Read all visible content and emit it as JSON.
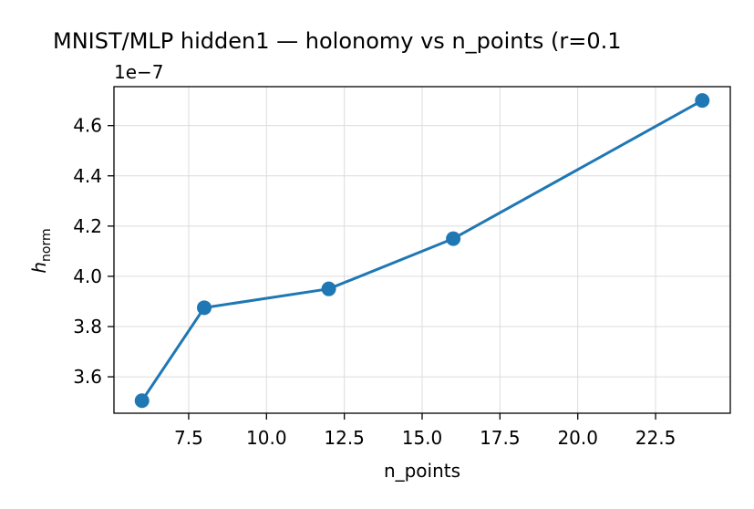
{
  "chart_data": {
    "type": "line",
    "title": "MNIST/MLP hidden1 — holonomy vs n_points (r=0.1",
    "xlabel": "n_points",
    "ylabel_main": "h",
    "ylabel_sub": "norm",
    "y_offset_label": "1e−7",
    "x": [
      6,
      8,
      12,
      16,
      24
    ],
    "values": [
      3.505,
      3.875,
      3.95,
      4.15,
      4.7
    ],
    "y_scale": 1e-07,
    "xlim": [
      5.1,
      24.9
    ],
    "ylim": [
      3.455,
      4.755
    ],
    "x_ticks": [
      7.5,
      10.0,
      12.5,
      15.0,
      17.5,
      20.0,
      22.5
    ],
    "x_tick_labels": [
      "7.5",
      "10.0",
      "12.5",
      "15.0",
      "17.5",
      "20.0",
      "22.5"
    ],
    "y_ticks": [
      3.6,
      3.8,
      4.0,
      4.2,
      4.4,
      4.6
    ],
    "y_tick_labels": [
      "3.6",
      "3.8",
      "4.0",
      "4.2",
      "4.4",
      "4.6"
    ],
    "grid": true,
    "series_color": "#1f77b4"
  }
}
